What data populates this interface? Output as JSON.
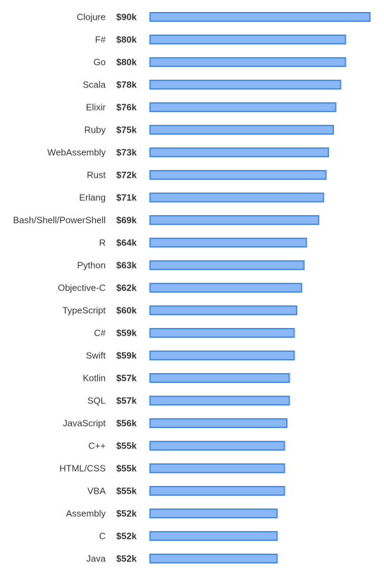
{
  "chart_data": {
    "type": "bar",
    "orientation": "horizontal",
    "categories": [
      "Clojure",
      "F#",
      "Go",
      "Scala",
      "Elixir",
      "Ruby",
      "WebAssembly",
      "Rust",
      "Erlang",
      "Bash/Shell/PowerShell",
      "R",
      "Python",
      "Objective-C",
      "TypeScript",
      "C#",
      "Swift",
      "Kotlin",
      "SQL",
      "JavaScript",
      "C++",
      "HTML/CSS",
      "VBA",
      "Assembly",
      "C",
      "Java"
    ],
    "values": [
      90,
      80,
      80,
      78,
      76,
      75,
      73,
      72,
      71,
      69,
      64,
      63,
      62,
      60,
      59,
      59,
      57,
      57,
      56,
      55,
      55,
      55,
      52,
      52,
      52
    ],
    "value_labels": [
      "$90k",
      "$80k",
      "$80k",
      "$78k",
      "$76k",
      "$75k",
      "$73k",
      "$72k",
      "$71k",
      "$69k",
      "$64k",
      "$63k",
      "$62k",
      "$60k",
      "$59k",
      "$59k",
      "$57k",
      "$57k",
      "$56k",
      "$55k",
      "$55k",
      "$55k",
      "$52k",
      "$52k",
      "$52k"
    ],
    "unit": "k",
    "xlim": [
      0,
      90
    ],
    "title": "",
    "xlabel": "",
    "ylabel": "",
    "grid": false,
    "legend": false,
    "bar_fill": "#8ab8f6",
    "bar_stroke": "#4d8fe8"
  }
}
